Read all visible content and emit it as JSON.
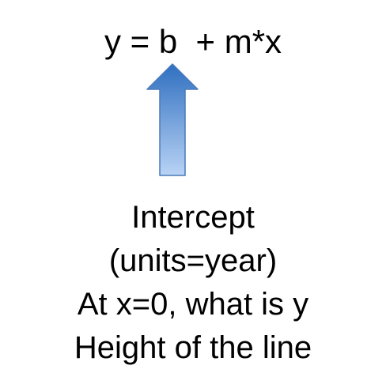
{
  "equation": {
    "text": "y = b  + m*x"
  },
  "arrow": {
    "icon": "up-arrow-icon",
    "fill_top": "#2f6fc0",
    "fill_bottom": "#b9d3f5",
    "stroke": "#4a7ab8"
  },
  "caption": {
    "lines": [
      "Intercept",
      "(units=year)",
      "At x=0, what is y",
      "Height of the line"
    ]
  }
}
